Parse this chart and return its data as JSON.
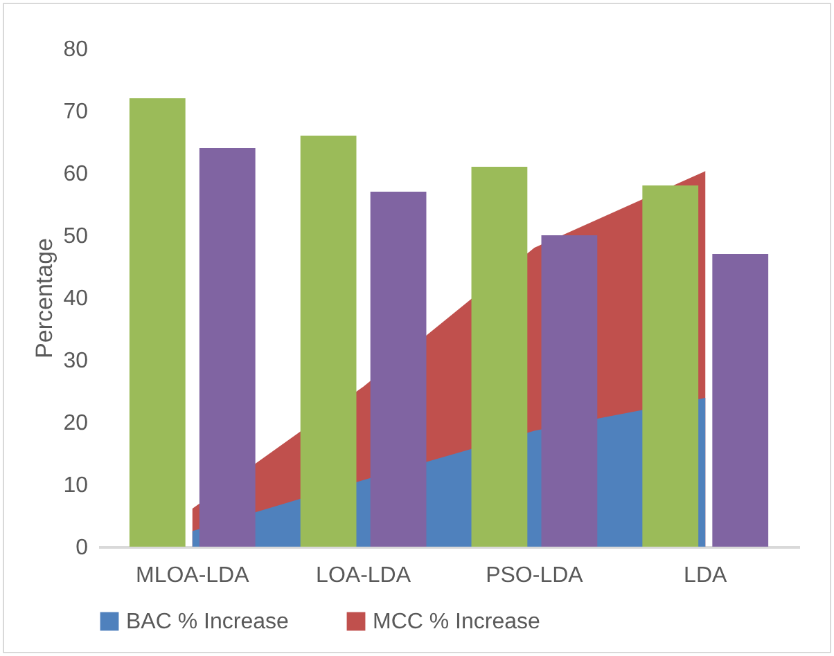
{
  "chart_data": {
    "type": "area",
    "ylabel": "Percentage",
    "categories": [
      "MLOA-LDA",
      "LOA-LDA",
      "PSO-LDA",
      "LDA"
    ],
    "series": [
      {
        "name": "BAC % Increase",
        "color": "#4f81bd",
        "values": [
          2.5,
          10.7,
          18.6,
          23.9
        ]
      },
      {
        "name": "MCC % Increase",
        "color": "#c0504d",
        "values": [
          6.1,
          25.7,
          48,
          60.3
        ]
      },
      {
        "type": "bar",
        "color": "#9bbb59",
        "values": [
          72,
          66,
          61,
          58
        ]
      },
      {
        "type": "bar",
        "color": "#8064a2",
        "values": [
          64,
          57,
          50,
          47
        ]
      }
    ],
    "ylim": [
      0,
      80
    ],
    "yticks": [
      0,
      10,
      20,
      30,
      40,
      50,
      60,
      70,
      80
    ],
    "grid": false,
    "legend": "bottom"
  }
}
